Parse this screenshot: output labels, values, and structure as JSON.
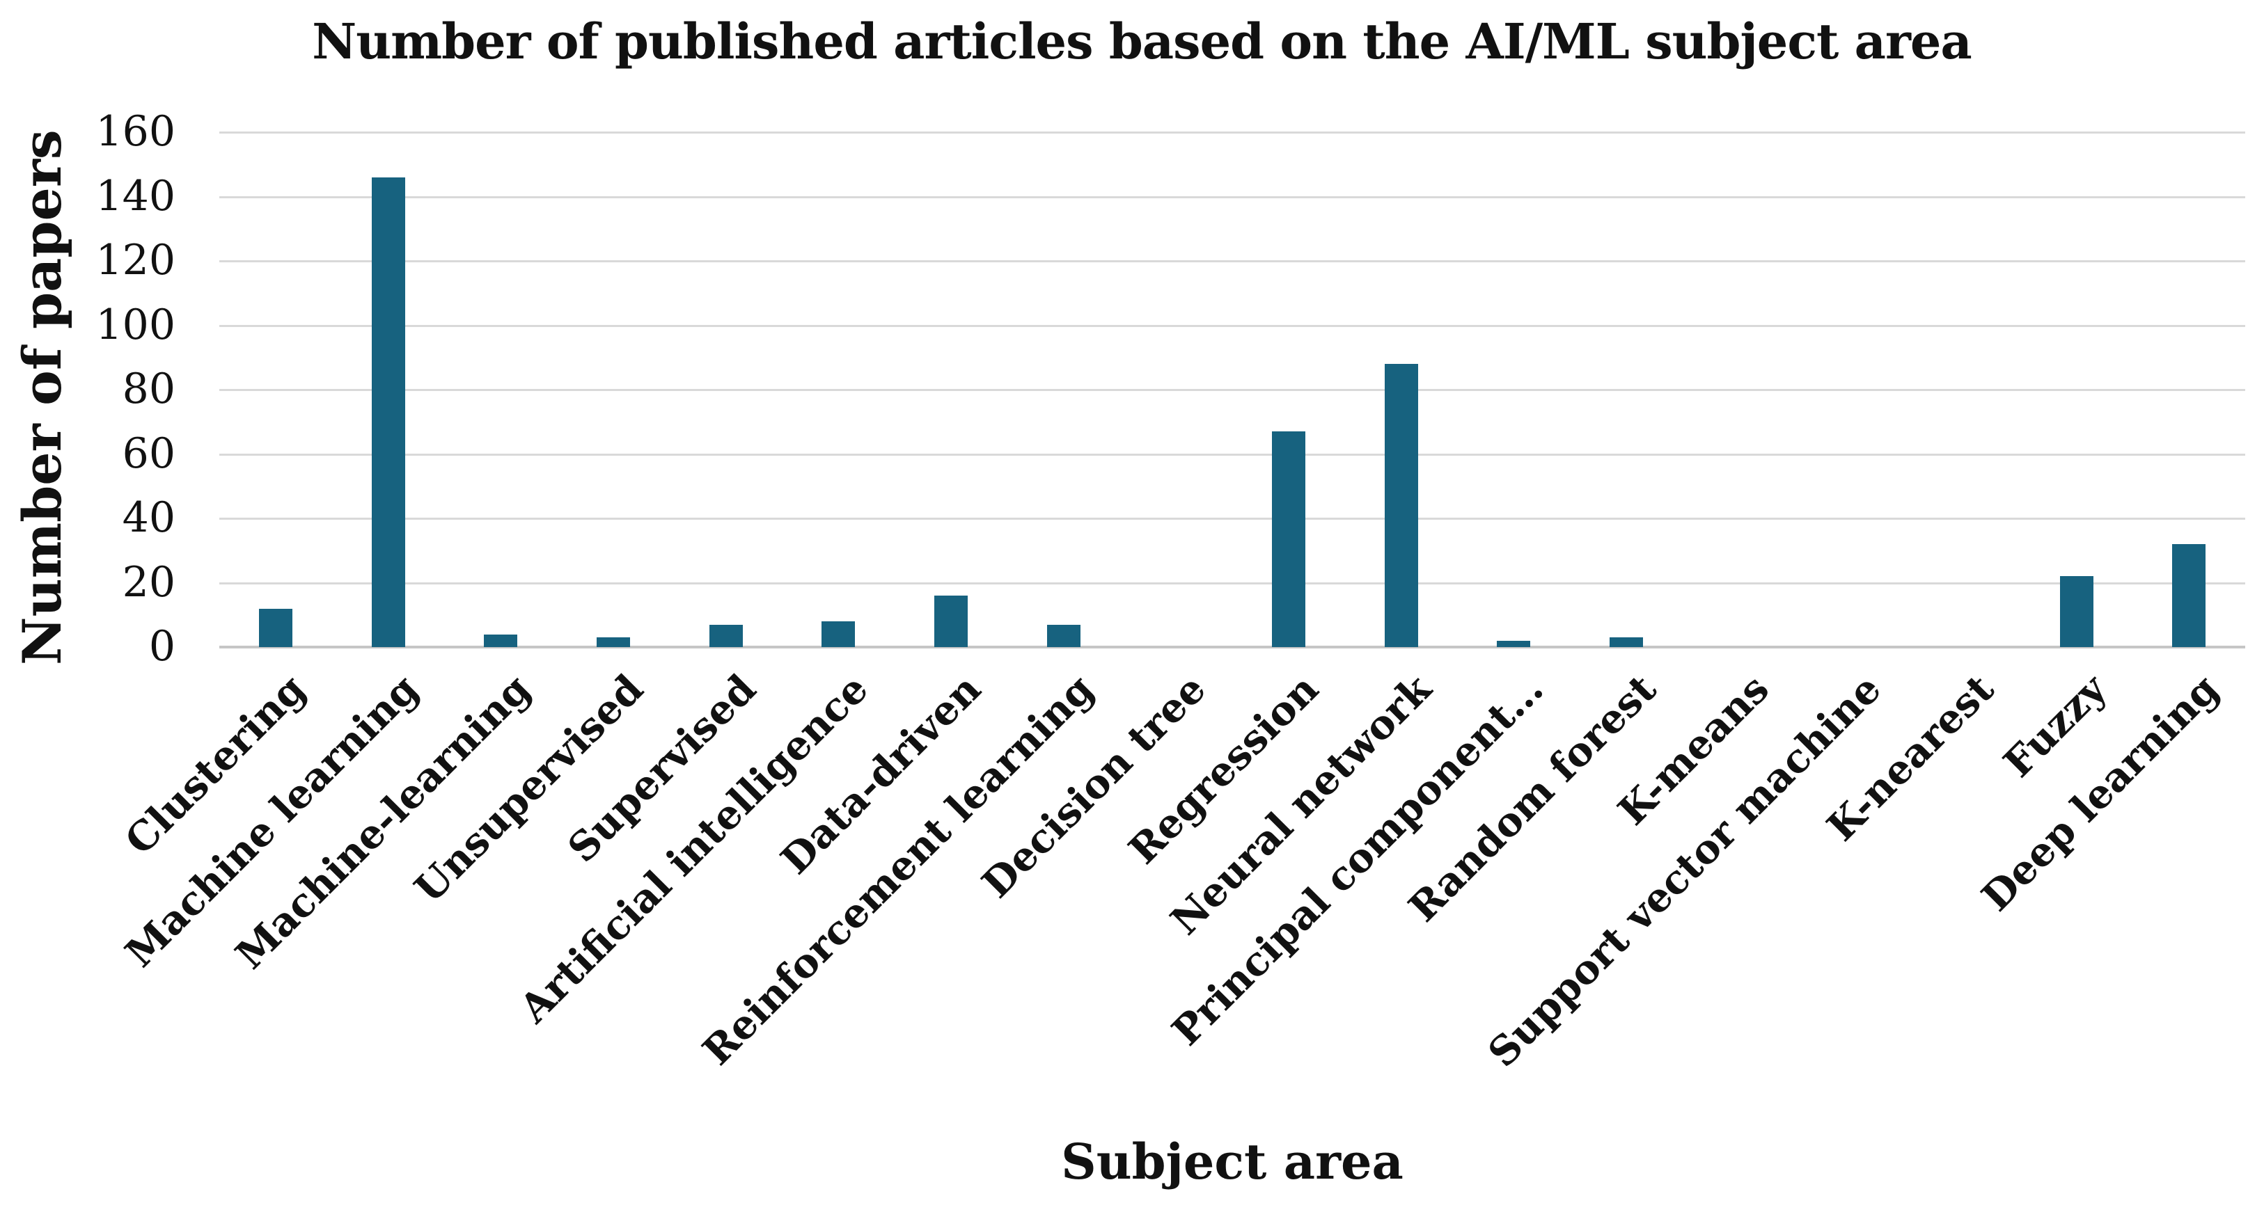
{
  "chart_data": {
    "type": "bar",
    "title": "Number of published articles based on the AI/ML subject area",
    "xlabel": "Subject area",
    "ylabel": "Number of papers",
    "categories": [
      "Clustering",
      "Machine learning",
      "Machine-learning",
      "Unsupervised",
      "Supervised",
      "Artificial intelligence",
      "Data-driven",
      "Reinforcement learning",
      "Decision tree",
      "Regression",
      "Neural network",
      "Principal component…",
      "Random forest",
      "K-means",
      "Support vector machine",
      "K-nearest",
      "Fuzzy",
      "Deep learning"
    ],
    "values": [
      12,
      146,
      4,
      3,
      7,
      8,
      16,
      7,
      0,
      67,
      88,
      2,
      3,
      0,
      0,
      0,
      22,
      32
    ],
    "ylim": [
      0,
      160
    ],
    "yticks": [
      0,
      20,
      40,
      60,
      80,
      100,
      120,
      140,
      160
    ],
    "grid": "horizontal",
    "legend": "none",
    "bar_color": "#17627f",
    "gridline_color": "#d9d9d9",
    "axis_line_color": "#c6c6c6",
    "text_color": "#111111",
    "background": "#ffffff"
  }
}
